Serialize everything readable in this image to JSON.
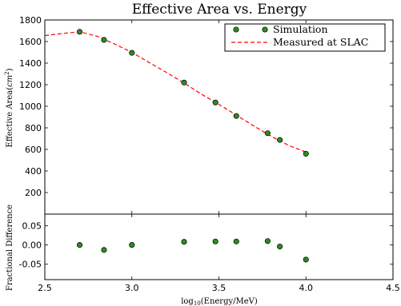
{
  "chart_data": {
    "type": "scatter",
    "title": "Effective Area vs. Energy",
    "xlabel": {
      "prefix": "log",
      "sub": "10",
      "suffix": "(Energy/MeV)"
    },
    "xlim": [
      2.5,
      4.5
    ],
    "xticks": [
      "2.5",
      "3.0",
      "3.5",
      "4.0",
      "4.5"
    ],
    "legend": {
      "placement": "top-right",
      "entries": [
        "Simulation",
        "Measured at SLAC"
      ]
    },
    "panels": [
      {
        "id": "effective-area",
        "ylabel": {
          "prefix": "Effective Area(",
          "italic": "cm",
          "sup": "2",
          "suffix": ")"
        },
        "ylim": [
          0,
          1800
        ],
        "yticks": [
          "200",
          "400",
          "600",
          "800",
          "1000",
          "1200",
          "1400",
          "1600",
          "1800"
        ],
        "series": [
          {
            "name": "Simulation",
            "style": "markers",
            "color": "#2e8b22",
            "x": [
              2.7,
              2.84,
              3.0,
              3.3,
              3.48,
              3.6,
              3.78,
              3.85,
              4.0
            ],
            "y": [
              1690,
              1615,
              1495,
              1220,
              1035,
              910,
              750,
              688,
              560
            ]
          },
          {
            "name": "Measured at SLAC",
            "style": "dashed-line",
            "color": "#ff0000",
            "x": [
              2.5,
              2.6,
              2.7,
              2.8,
              2.9,
              3.0,
              3.1,
              3.2,
              3.3,
              3.4,
              3.5,
              3.6,
              3.7,
              3.8,
              3.9,
              4.0
            ],
            "y": [
              1655,
              1675,
              1690,
              1650,
              1578,
              1500,
              1405,
              1312,
              1215,
              1112,
              1018,
              918,
              818,
              722,
              638,
              575
            ]
          }
        ]
      },
      {
        "id": "fractional-difference",
        "ylabel": {
          "prefix": "Fractional Difference"
        },
        "ylim": [
          -0.09,
          0.08
        ],
        "yticks": [
          "0.05",
          "0.00",
          "-0.05"
        ],
        "series": [
          {
            "name": "",
            "style": "markers",
            "color": "#2e8b22",
            "x": [
              2.7,
              2.84,
              3.0,
              3.3,
              3.48,
              3.6,
              3.78,
              3.85,
              4.0
            ],
            "y": [
              0.0,
              -0.013,
              0.0,
              0.008,
              0.009,
              0.009,
              0.01,
              -0.004,
              -0.038
            ]
          }
        ]
      }
    ]
  }
}
